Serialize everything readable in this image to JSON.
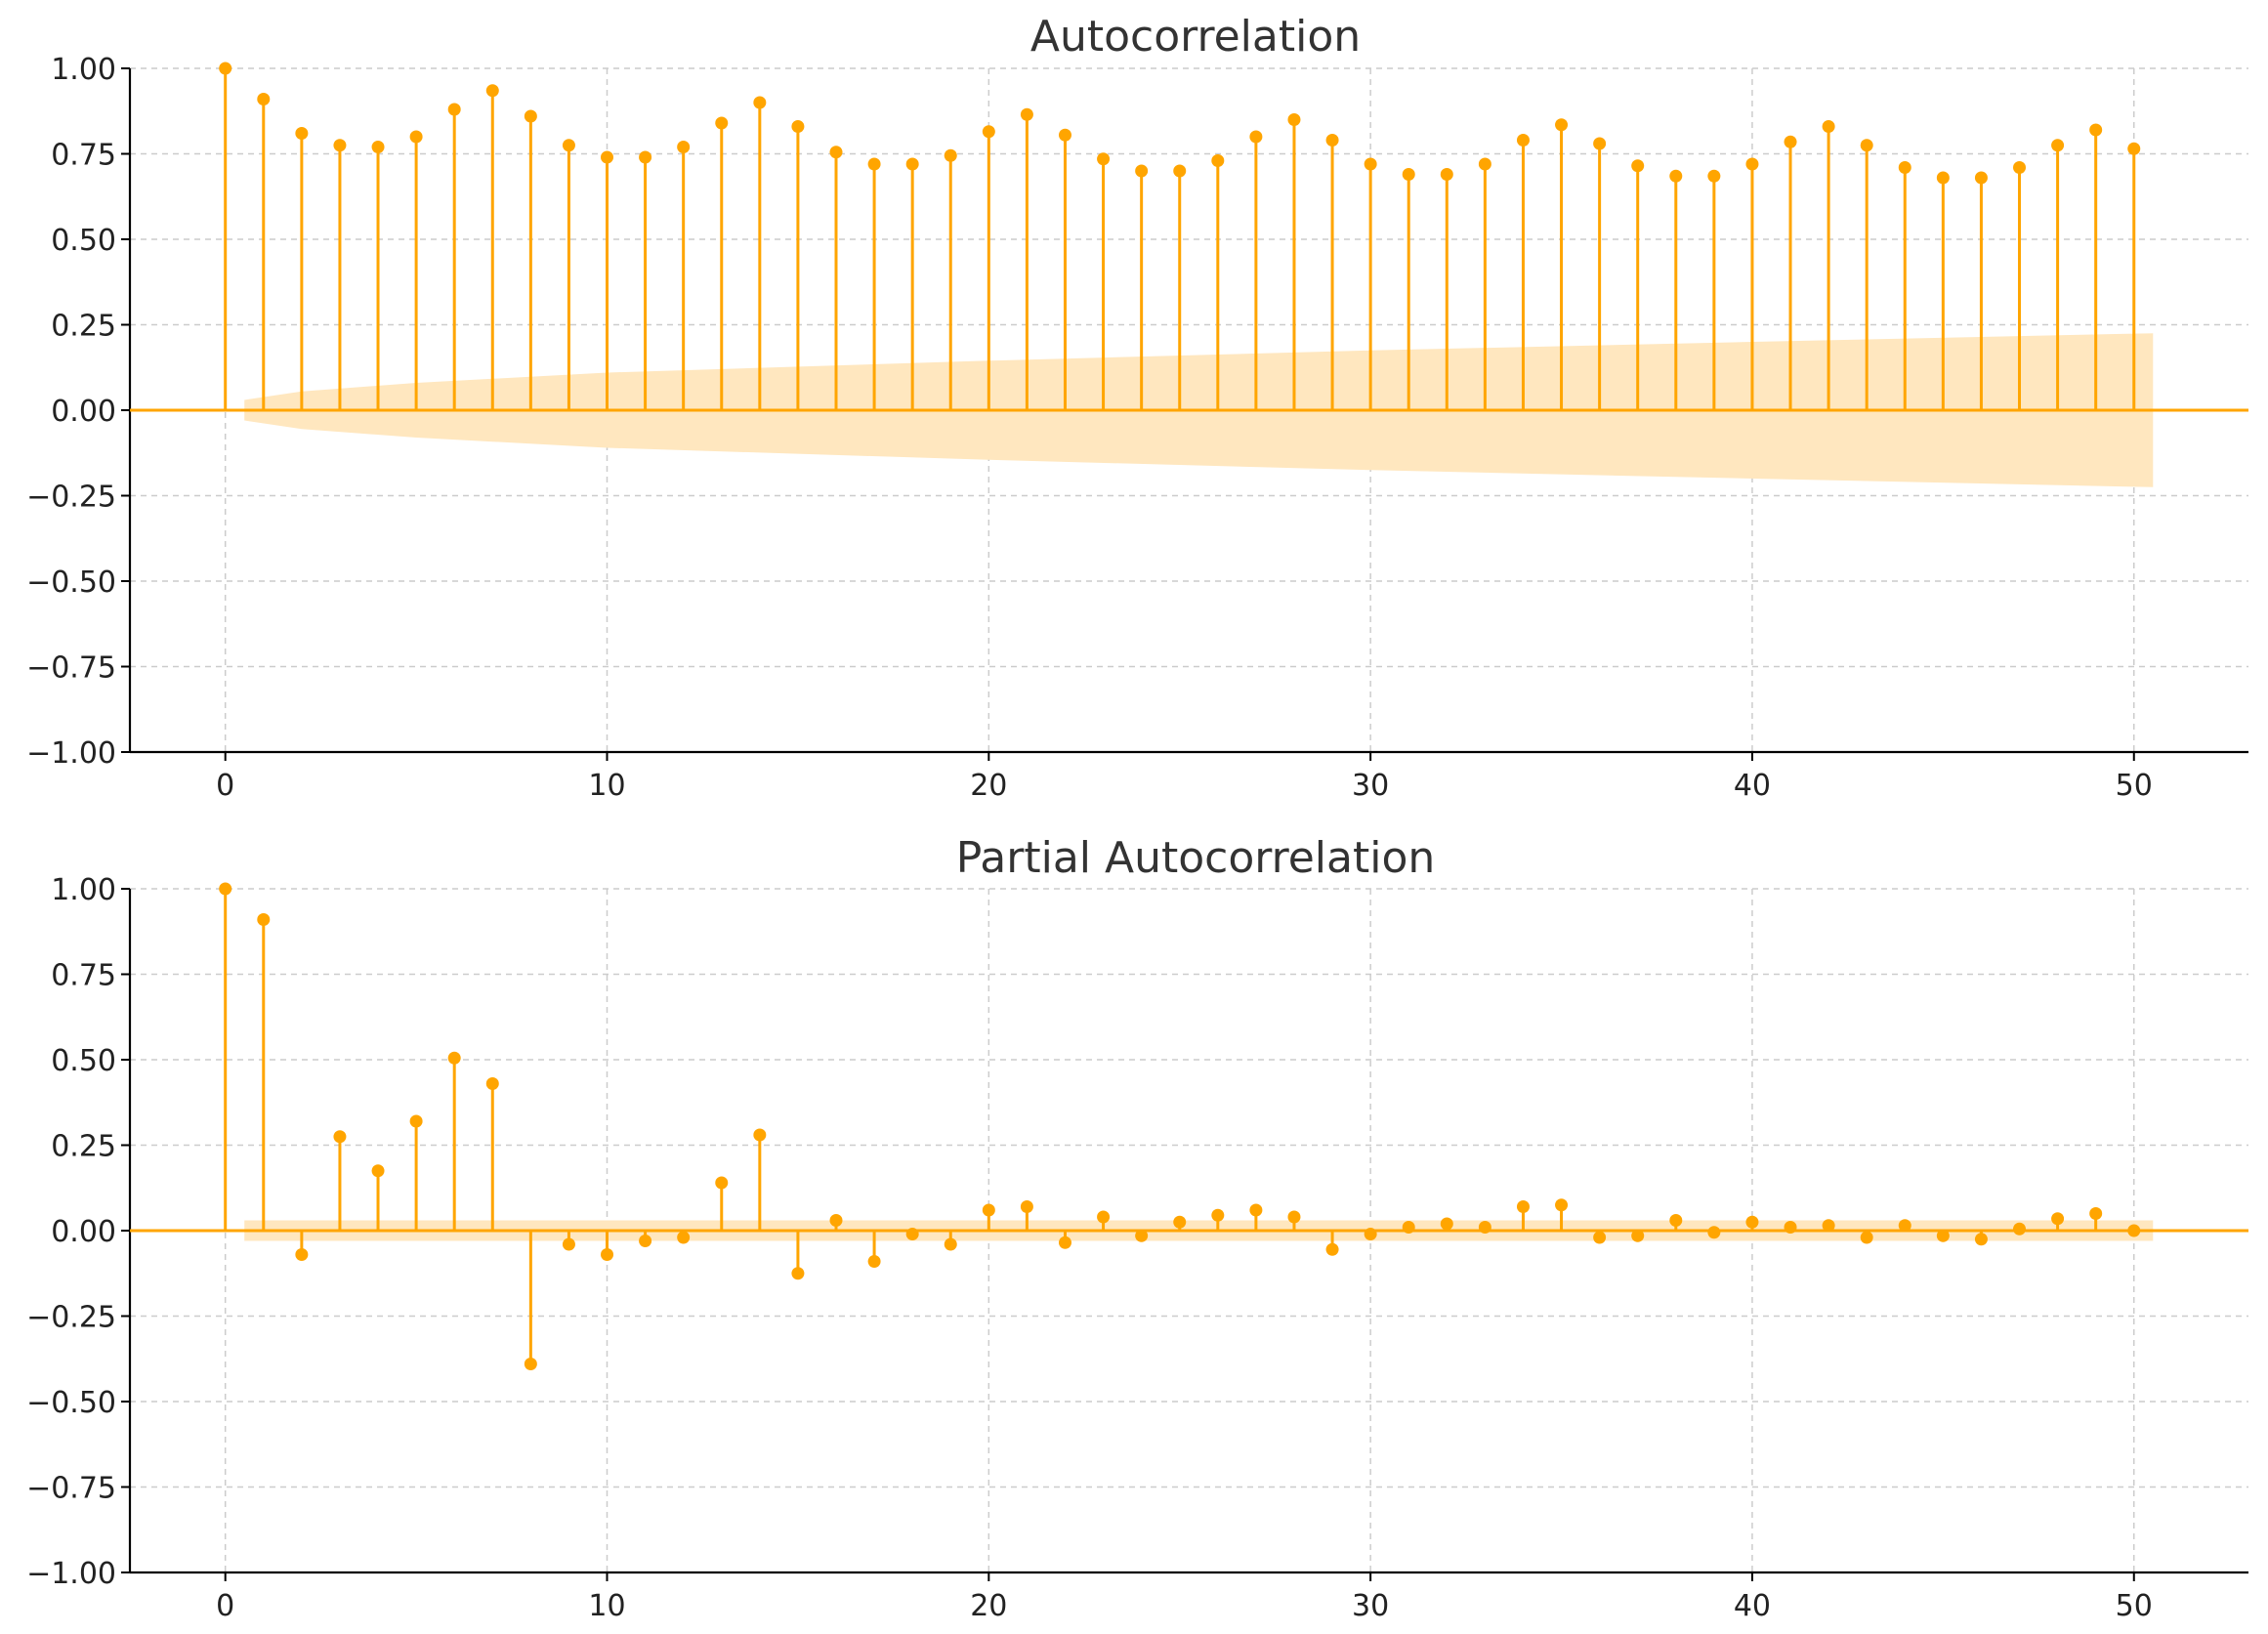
{
  "colors": {
    "stem": "#FFA500",
    "band": "#FFE7BF",
    "grid": "#cccccc"
  },
  "chart_data": [
    {
      "type": "stem",
      "title": "Autocorrelation",
      "xlabel": "",
      "ylabel": "",
      "xlim": [
        -2.5,
        53
      ],
      "ylim": [
        -1.0,
        1.0
      ],
      "grid": true,
      "xticks": [
        0,
        10,
        20,
        30,
        40,
        50
      ],
      "xtick_labels": [
        "0",
        "10",
        "20",
        "30",
        "40",
        "50"
      ],
      "yticks": [
        1.0,
        0.75,
        0.5,
        0.25,
        0.0,
        -0.25,
        -0.5,
        -0.75,
        -1.0
      ],
      "ytick_labels": [
        "1.00",
        "0.75",
        "0.50",
        "0.25",
        "0.00",
        "−0.25",
        "−0.50",
        "−0.75",
        "−1.00"
      ],
      "lags": [
        0,
        1,
        2,
        3,
        4,
        5,
        6,
        7,
        8,
        9,
        10,
        11,
        12,
        13,
        14,
        15,
        16,
        17,
        18,
        19,
        20,
        21,
        22,
        23,
        24,
        25,
        26,
        27,
        28,
        29,
        30,
        31,
        32,
        33,
        34,
        35,
        36,
        37,
        38,
        39,
        40,
        41,
        42,
        43,
        44,
        45,
        46,
        47,
        48,
        49,
        50
      ],
      "values": [
        1.0,
        0.91,
        0.81,
        0.775,
        0.77,
        0.8,
        0.88,
        0.935,
        0.86,
        0.775,
        0.74,
        0.74,
        0.77,
        0.84,
        0.9,
        0.83,
        0.755,
        0.72,
        0.72,
        0.745,
        0.815,
        0.865,
        0.805,
        0.735,
        0.7,
        0.7,
        0.73,
        0.8,
        0.85,
        0.79,
        0.72,
        0.69,
        0.69,
        0.72,
        0.79,
        0.835,
        0.78,
        0.715,
        0.685,
        0.685,
        0.72,
        0.785,
        0.83,
        0.775,
        0.71,
        0.68,
        0.68,
        0.71,
        0.775,
        0.82,
        0.765
      ],
      "confidence_band": {
        "x": [
          0.5,
          2,
          5,
          10,
          20,
          30,
          40,
          50.5
        ],
        "upper": [
          0.03,
          0.055,
          0.08,
          0.11,
          0.145,
          0.175,
          0.2,
          0.225
        ]
      }
    },
    {
      "type": "stem",
      "title": "Partial Autocorrelation",
      "xlabel": "",
      "ylabel": "",
      "xlim": [
        -2.5,
        53
      ],
      "ylim": [
        -1.0,
        1.0
      ],
      "grid": true,
      "xticks": [
        0,
        10,
        20,
        30,
        40,
        50
      ],
      "xtick_labels": [
        "0",
        "10",
        "20",
        "30",
        "40",
        "50"
      ],
      "yticks": [
        1.0,
        0.75,
        0.5,
        0.25,
        0.0,
        -0.25,
        -0.5,
        -0.75,
        -1.0
      ],
      "ytick_labels": [
        "1.00",
        "0.75",
        "0.50",
        "0.25",
        "0.00",
        "−0.25",
        "−0.50",
        "−0.75",
        "−1.00"
      ],
      "lags": [
        0,
        1,
        2,
        3,
        4,
        5,
        6,
        7,
        8,
        9,
        10,
        11,
        12,
        13,
        14,
        15,
        16,
        17,
        18,
        19,
        20,
        21,
        22,
        23,
        24,
        25,
        26,
        27,
        28,
        29,
        30,
        31,
        32,
        33,
        34,
        35,
        36,
        37,
        38,
        39,
        40,
        41,
        42,
        43,
        44,
        45,
        46,
        47,
        48,
        49,
        50
      ],
      "values": [
        1.0,
        0.91,
        -0.07,
        0.275,
        0.175,
        0.32,
        0.505,
        0.43,
        -0.39,
        -0.04,
        -0.07,
        -0.03,
        -0.02,
        0.14,
        0.28,
        -0.125,
        0.03,
        -0.09,
        -0.01,
        -0.04,
        0.06,
        0.07,
        -0.035,
        0.04,
        -0.015,
        0.025,
        0.045,
        0.06,
        0.04,
        -0.055,
        -0.01,
        0.01,
        0.02,
        0.01,
        0.07,
        0.075,
        -0.02,
        -0.015,
        0.03,
        -0.005,
        0.025,
        0.01,
        0.015,
        -0.02,
        0.015,
        -0.015,
        -0.025,
        0.005,
        0.035,
        0.05,
        0.0
      ],
      "confidence_band": {
        "x": [
          0.5,
          50.5
        ],
        "upper": [
          0.03,
          0.03
        ]
      }
    }
  ]
}
